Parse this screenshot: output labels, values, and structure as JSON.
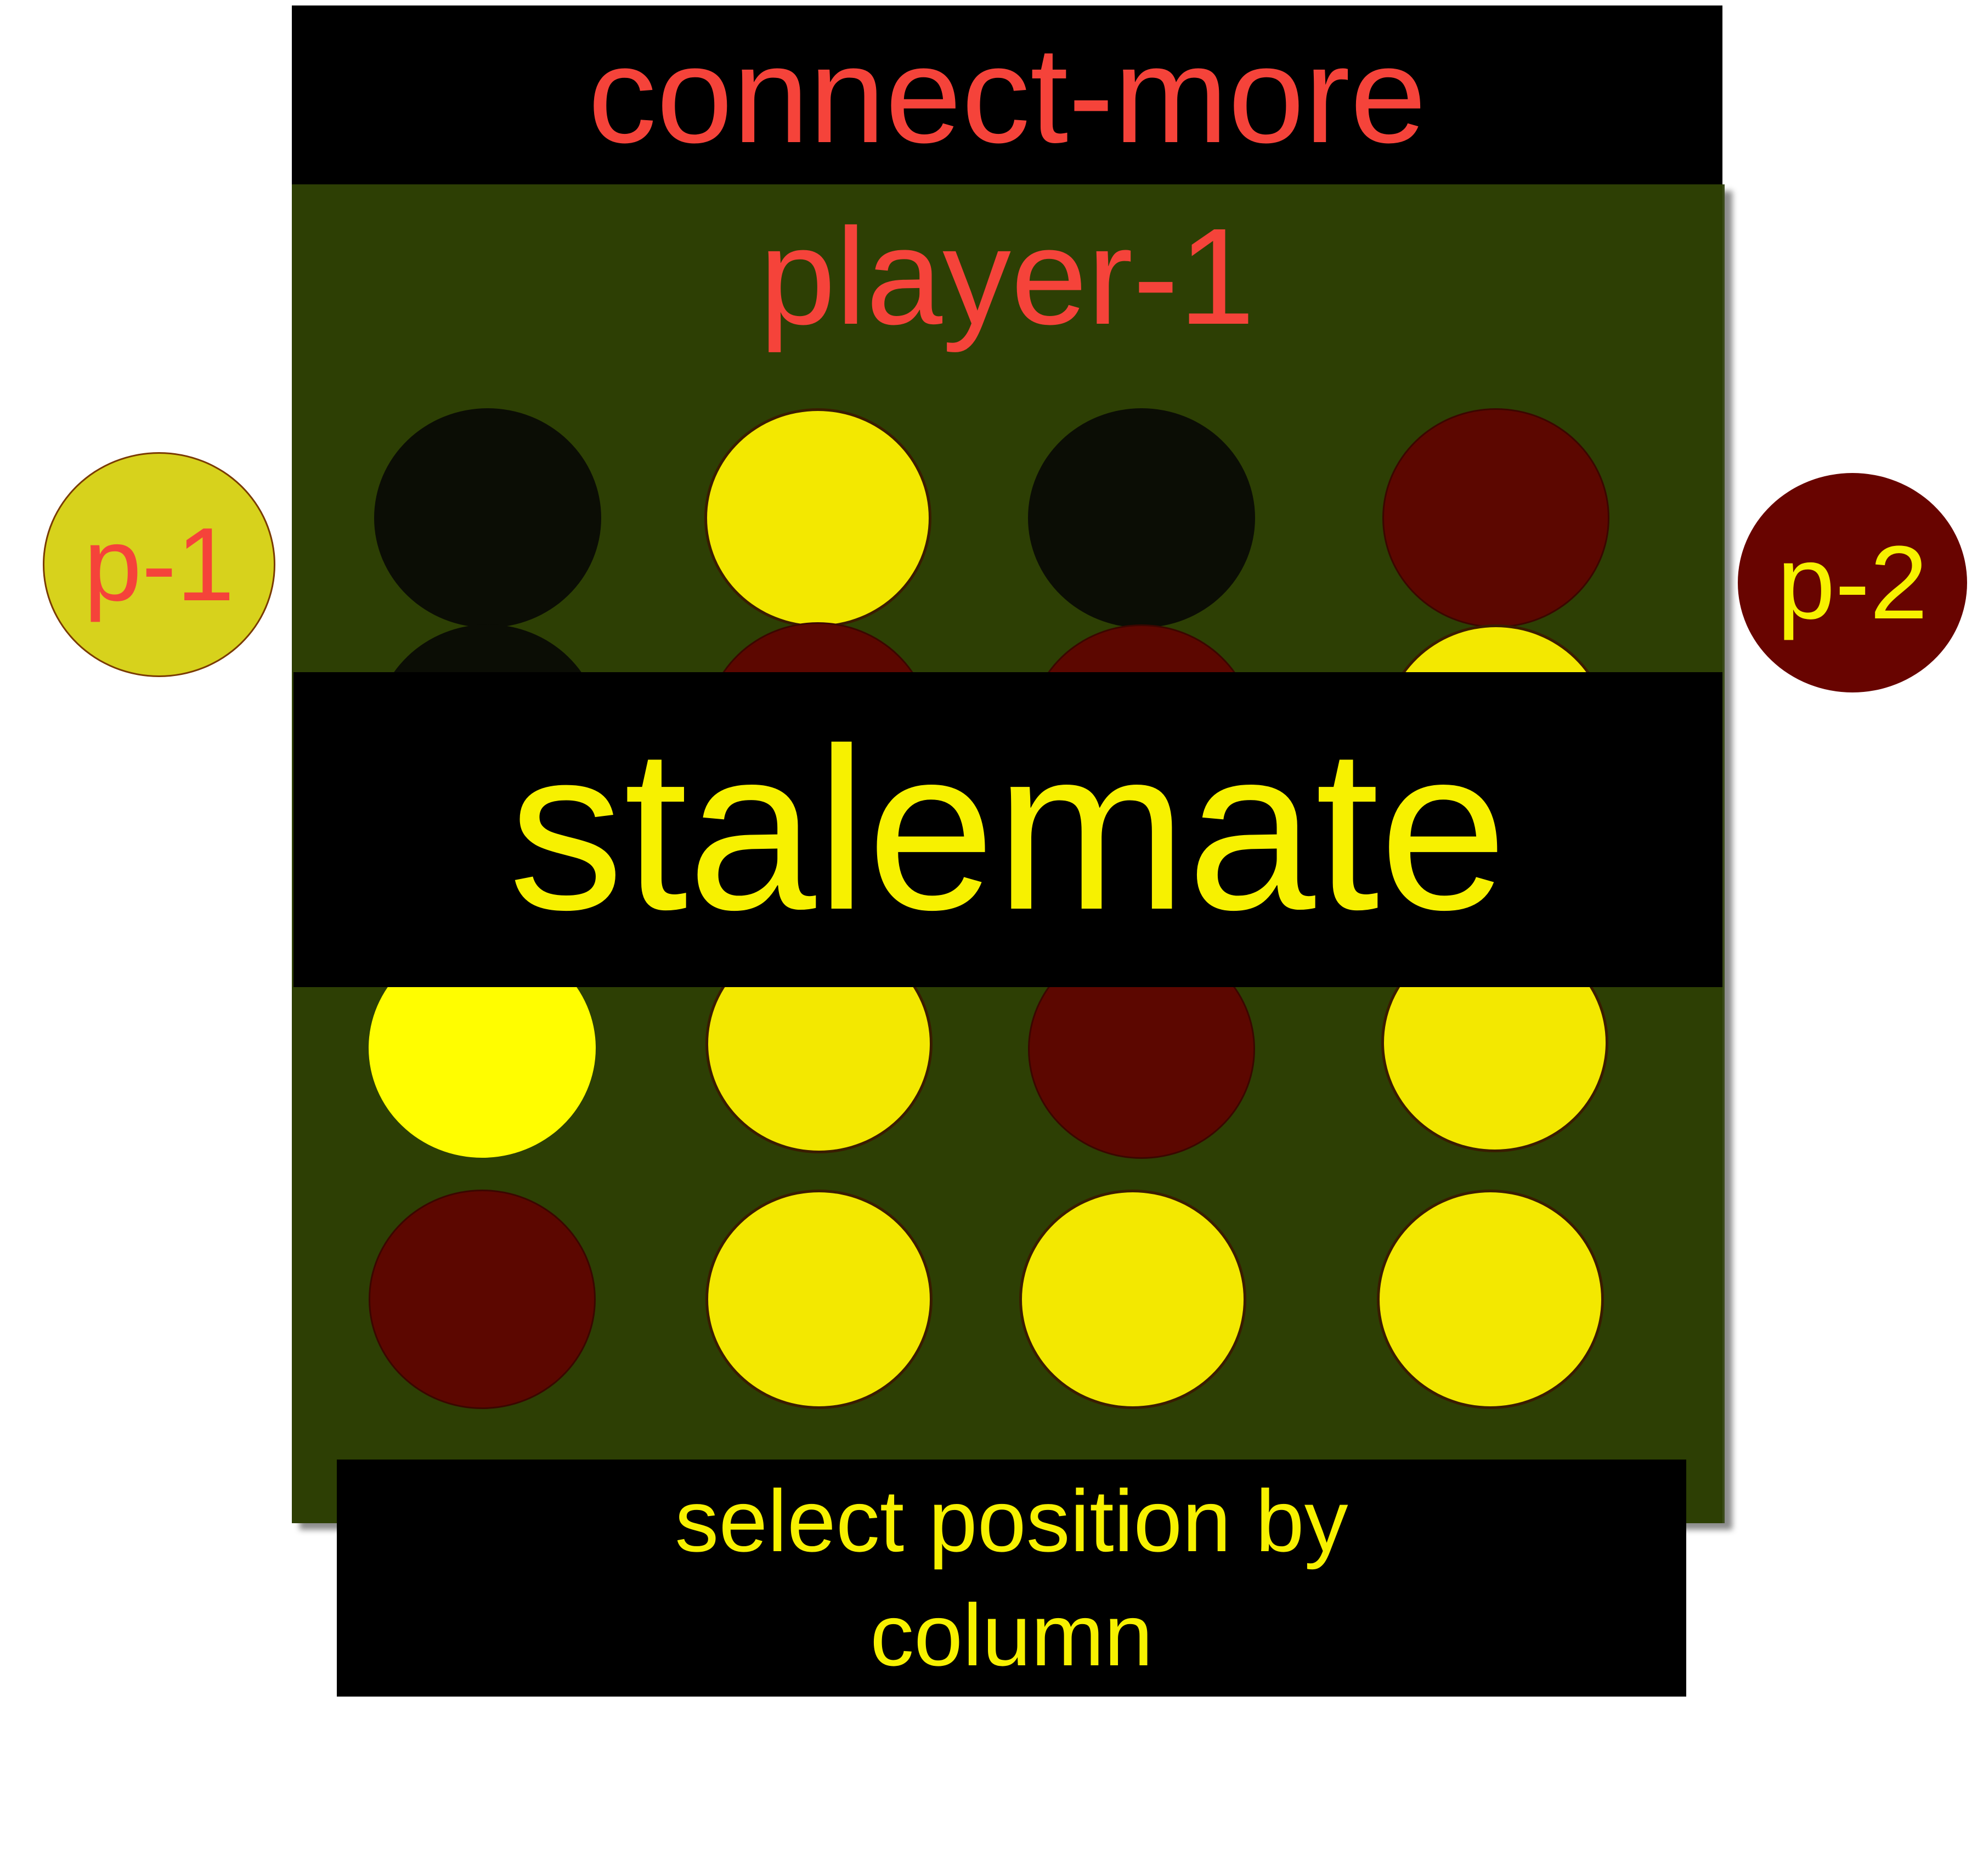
{
  "header": {
    "title": "connect-more"
  },
  "status": {
    "current_player": "player-1",
    "result": "stalemate"
  },
  "instructions": {
    "line1": "select position by",
    "line2": "column"
  },
  "players": [
    {
      "label": "p-1",
      "color": "#d7d21c",
      "text_color": "#f5433a"
    },
    {
      "label": "p-2",
      "color": "#680400",
      "text_color": "#f7f100"
    }
  ],
  "board": {
    "columns": 4,
    "rows": 4,
    "visible_rows": [
      [
        "empty",
        "yellow",
        "empty",
        "red"
      ],
      [
        "yellow",
        "yellow",
        "red",
        "yellow"
      ],
      [
        "red",
        "yellow",
        "yellow",
        "yellow"
      ]
    ],
    "colors": {
      "board": "#2d3f04",
      "yellow": "#f3e800",
      "red": "#5c0700",
      "empty": "#0b0d05"
    }
  }
}
